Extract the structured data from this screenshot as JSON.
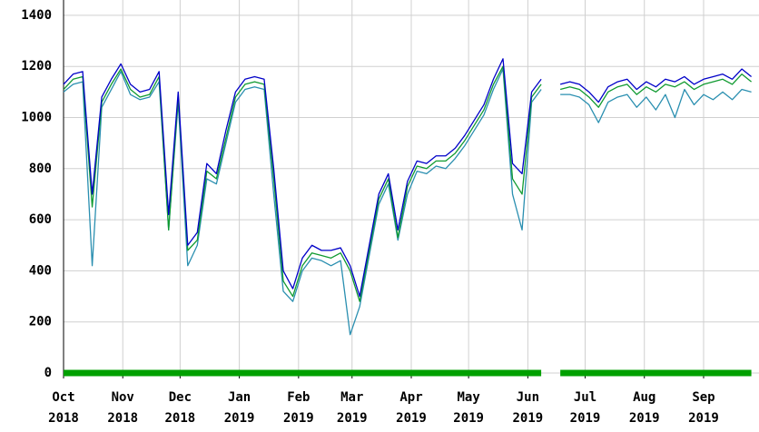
{
  "chart_data": {
    "type": "line",
    "xlim": [
      0,
      364
    ],
    "xticks": [
      {
        "value": 0,
        "label": "Oct 2018"
      },
      {
        "value": 31,
        "label": "Nov 2018"
      },
      {
        "value": 61,
        "label": "Dec 2018"
      },
      {
        "value": 92,
        "label": "Jan 2019"
      },
      {
        "value": 123,
        "label": "Feb 2019"
      },
      {
        "value": 151,
        "label": "Mar 2019"
      },
      {
        "value": 182,
        "label": "Apr 2019"
      },
      {
        "value": 212,
        "label": "May 2019"
      },
      {
        "value": 243,
        "label": "Jun 2019"
      },
      {
        "value": 273,
        "label": "Jul 2019"
      },
      {
        "value": 304,
        "label": "Aug 2019"
      },
      {
        "value": 335,
        "label": "Sep 2019"
      }
    ],
    "ylim": [
      0,
      1460
    ],
    "yticks": [
      0,
      200,
      400,
      600,
      800,
      1000,
      1200,
      1400
    ],
    "grid": true,
    "x": [
      0,
      5,
      10,
      15,
      20,
      25,
      30,
      35,
      40,
      45,
      50,
      55,
      60,
      65,
      70,
      75,
      80,
      85,
      90,
      95,
      100,
      105,
      110,
      115,
      120,
      125,
      130,
      135,
      140,
      145,
      150,
      155,
      160,
      165,
      170,
      175,
      180,
      185,
      190,
      195,
      200,
      205,
      210,
      215,
      220,
      225,
      230,
      235,
      240,
      245,
      250,
      255,
      260,
      265,
      270,
      275,
      280,
      285,
      290,
      295,
      300,
      305,
      310,
      315,
      320,
      325,
      330,
      335,
      340,
      345,
      350,
      355,
      360
    ],
    "series": [
      {
        "color": "#00a000",
        "width": 7,
        "values": [
          0,
          0,
          0,
          0,
          0,
          0,
          0,
          0,
          0,
          0,
          0,
          0,
          0,
          0,
          0,
          0,
          0,
          0,
          0,
          0,
          0,
          0,
          0,
          0,
          0,
          0,
          0,
          0,
          0,
          0,
          0,
          0,
          0,
          0,
          0,
          0,
          0,
          0,
          0,
          0,
          0,
          0,
          0,
          0,
          0,
          0,
          0,
          0,
          0,
          0,
          0,
          null,
          0,
          0,
          0,
          0,
          0,
          0,
          0,
          0,
          0,
          0,
          0,
          0,
          0,
          0,
          0,
          0,
          0,
          0,
          0,
          0,
          0
        ]
      },
      {
        "color": "#2a8fb0",
        "width": 1.3,
        "values": [
          1100,
          1130,
          1140,
          420,
          1040,
          1110,
          1180,
          1090,
          1070,
          1080,
          1140,
          560,
          1060,
          420,
          500,
          760,
          740,
          900,
          1060,
          1110,
          1120,
          1110,
          700,
          320,
          280,
          400,
          450,
          440,
          420,
          440,
          150,
          260,
          460,
          660,
          740,
          520,
          700,
          790,
          780,
          810,
          800,
          840,
          890,
          950,
          1010,
          1110,
          1190,
          700,
          560,
          1060,
          1110,
          null,
          1090,
          1090,
          1080,
          1050,
          980,
          1060,
          1080,
          1090,
          1040,
          1080,
          1030,
          1090,
          1000,
          1110,
          1050,
          1090,
          1070,
          1100,
          1070,
          1110,
          1100
        ]
      },
      {
        "color": "#109a30",
        "width": 1.3,
        "values": [
          1110,
          1150,
          1160,
          650,
          1060,
          1130,
          1190,
          1110,
          1080,
          1090,
          1160,
          560,
          1080,
          480,
          520,
          790,
          760,
          920,
          1080,
          1130,
          1140,
          1130,
          760,
          360,
          300,
          420,
          470,
          460,
          450,
          470,
          400,
          280,
          480,
          680,
          760,
          530,
          730,
          810,
          800,
          830,
          830,
          860,
          910,
          970,
          1030,
          1130,
          1200,
          760,
          700,
          1080,
          1130,
          null,
          1110,
          1120,
          1110,
          1080,
          1040,
          1100,
          1120,
          1130,
          1090,
          1120,
          1100,
          1130,
          1120,
          1140,
          1110,
          1130,
          1140,
          1150,
          1130,
          1170,
          1140
        ]
      },
      {
        "color": "#0000c8",
        "width": 1.3,
        "values": [
          1130,
          1170,
          1180,
          700,
          1080,
          1150,
          1210,
          1130,
          1100,
          1110,
          1180,
          620,
          1100,
          500,
          550,
          820,
          780,
          950,
          1100,
          1150,
          1160,
          1150,
          800,
          400,
          330,
          450,
          500,
          480,
          480,
          490,
          420,
          300,
          500,
          700,
          780,
          560,
          750,
          830,
          820,
          850,
          850,
          880,
          930,
          990,
          1050,
          1150,
          1230,
          820,
          780,
          1100,
          1150,
          null,
          1130,
          1140,
          1130,
          1100,
          1060,
          1120,
          1140,
          1150,
          1110,
          1140,
          1120,
          1150,
          1140,
          1160,
          1130,
          1150,
          1160,
          1170,
          1150,
          1190,
          1160
        ]
      }
    ]
  }
}
